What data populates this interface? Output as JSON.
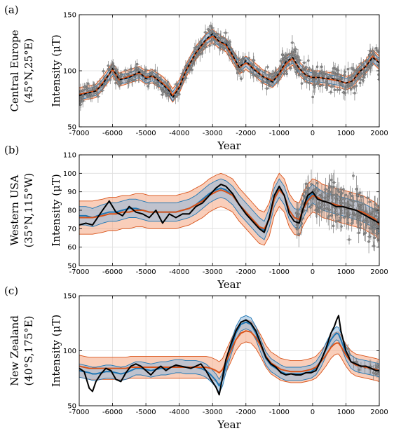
{
  "chart_data": [
    {
      "type": "line",
      "panel_tag": "(a)",
      "row_label": [
        "Central Europe",
        "(45°N,25°E)"
      ],
      "xlabel": "Year",
      "ylabel": "Intensity (μT)",
      "xlim": [
        -7000,
        2000
      ],
      "ylim": [
        50,
        150
      ],
      "xticks": [
        "-7000",
        "-6000",
        "-5000",
        "-4000",
        "-3000",
        "-2000",
        "-1000",
        "0",
        "1000",
        "2000"
      ],
      "yticks": [
        "50",
        "100",
        "150"
      ],
      "grid": true,
      "colors": {
        "black": "#000000",
        "blue": "#1f77b4",
        "orange": "#d95319",
        "data": "#707070",
        "band_orange": "#f4a582",
        "band_blue": "#a6c8e6"
      },
      "series": [
        {
          "style": "black-dashed",
          "x": [
            -7000,
            -6500,
            -6300,
            -6000,
            -5800,
            -5500,
            -5200,
            -5000,
            -4800,
            -4500,
            -4300,
            -4200,
            -4000,
            -3800,
            -3500,
            -3200,
            -3000,
            -2800,
            -2600,
            -2400,
            -2200,
            -2000,
            -1800,
            -1500,
            -1200,
            -1000,
            -800,
            -600,
            -400,
            -200,
            0,
            200,
            400,
            600,
            800,
            1000,
            1200,
            1400,
            1600,
            1800,
            2000
          ],
          "y": [
            78,
            82,
            88,
            102,
            92,
            94,
            99,
            93,
            96,
            88,
            82,
            76,
            85,
            100,
            116,
            128,
            133,
            126,
            124,
            114,
            103,
            109,
            102,
            95,
            90,
            98,
            108,
            112,
            102,
            96,
            94,
            94,
            93,
            93,
            91,
            89,
            91,
            99,
            104,
            112,
            107
          ]
        },
        {
          "style": "blue",
          "x": [
            -7000,
            -6500,
            -6300,
            -6000,
            -5800,
            -5500,
            -5200,
            -5000,
            -4800,
            -4500,
            -4300,
            -4200,
            -4000,
            -3800,
            -3500,
            -3200,
            -3000,
            -2800,
            -2600,
            -2400,
            -2200,
            -2000,
            -1800,
            -1500,
            -1200,
            -1000,
            -800,
            -600,
            -400,
            -200,
            0,
            200,
            400,
            600,
            800,
            1000,
            1200,
            1400,
            1600,
            1800,
            2000
          ],
          "y": [
            78,
            82,
            88,
            101,
            92,
            94,
            98,
            93,
            95,
            88,
            82,
            77,
            86,
            100,
            116,
            128,
            132,
            126,
            124,
            114,
            103,
            108,
            102,
            95,
            90,
            97,
            107,
            111,
            102,
            96,
            94,
            94,
            93,
            92,
            91,
            89,
            91,
            99,
            104,
            112,
            107
          ]
        },
        {
          "style": "orange",
          "x": [
            -7000,
            -6500,
            -6300,
            -6000,
            -5800,
            -5500,
            -5200,
            -5000,
            -4800,
            -4500,
            -4300,
            -4200,
            -4000,
            -3800,
            -3500,
            -3200,
            -3000,
            -2800,
            -2600,
            -2400,
            -2200,
            -2000,
            -1800,
            -1500,
            -1200,
            -1000,
            -800,
            -600,
            -400,
            -200,
            0,
            200,
            400,
            600,
            800,
            1000,
            1200,
            1400,
            1600,
            1800,
            2000
          ],
          "y": [
            79,
            82,
            89,
            101,
            92,
            95,
            98,
            94,
            95,
            89,
            83,
            78,
            86,
            100,
            116,
            127,
            131,
            126,
            123,
            113,
            103,
            107,
            103,
            95,
            91,
            97,
            106,
            111,
            102,
            96,
            94,
            94,
            93,
            92,
            91,
            89,
            91,
            99,
            104,
            113,
            107
          ]
        }
      ],
      "bands": {
        "blue_half_width": 4,
        "orange_half_width": 6
      },
      "observations": {
        "color": "#707070",
        "n_points": 600,
        "x_range": [
          -7000,
          2000
        ]
      }
    },
    {
      "type": "line",
      "panel_tag": "(b)",
      "row_label": [
        "Western USA",
        "(35°N,115°W)"
      ],
      "xlabel": "Year",
      "ylabel": "Intensity (μT)",
      "xlim": [
        -7000,
        2000
      ],
      "ylim": [
        50,
        110
      ],
      "xticks": [
        "-7000",
        "-6000",
        "-5000",
        "-4000",
        "-3000",
        "-2000",
        "-1000",
        "0",
        "1000",
        "2000"
      ],
      "yticks": [
        "50",
        "60",
        "70",
        "80",
        "90",
        "100",
        "110"
      ],
      "grid": true,
      "series": [
        {
          "style": "black",
          "x": [
            -7000,
            -6800,
            -6600,
            -6300,
            -6100,
            -5900,
            -5700,
            -5500,
            -5300,
            -5100,
            -4900,
            -4700,
            -4500,
            -4300,
            -4100,
            -3900,
            -3700,
            -3500,
            -3300,
            -3100,
            -2900,
            -2750,
            -2600,
            -2400,
            -2200,
            -2000,
            -1800,
            -1600,
            -1450,
            -1300,
            -1150,
            -1000,
            -850,
            -700,
            -550,
            -400,
            -300,
            -150,
            0,
            150,
            300,
            500,
            700,
            900,
            1100,
            1300,
            1500,
            1700,
            1900,
            2000
          ],
          "y": [
            72,
            73,
            72,
            80,
            85,
            79,
            77,
            82,
            79,
            78,
            76,
            80,
            73,
            78,
            76,
            78,
            78,
            82,
            84,
            88,
            92,
            94,
            93,
            89,
            83,
            78,
            74,
            70,
            68,
            76,
            88,
            93,
            88,
            78,
            74,
            73,
            80,
            88,
            90,
            86,
            85,
            84,
            82,
            82,
            81,
            80,
            78,
            76,
            74,
            73
          ]
        },
        {
          "style": "blue",
          "x": [
            -7000,
            -6800,
            -6600,
            -6300,
            -6100,
            -5900,
            -5700,
            -5500,
            -5300,
            -5100,
            -4900,
            -4700,
            -4500,
            -4300,
            -4100,
            -3900,
            -3700,
            -3500,
            -3300,
            -3100,
            -2900,
            -2750,
            -2600,
            -2400,
            -2200,
            -2000,
            -1800,
            -1600,
            -1450,
            -1300,
            -1150,
            -1000,
            -850,
            -700,
            -550,
            -400,
            -300,
            -150,
            0,
            150,
            300,
            500,
            700,
            900,
            1100,
            1300,
            1500,
            1700,
            1900,
            2000
          ],
          "y": [
            77,
            77,
            76,
            78,
            79,
            79,
            80,
            81,
            81,
            80,
            79,
            79,
            79,
            79,
            79,
            80,
            81,
            83,
            86,
            89,
            91,
            92,
            91,
            88,
            83,
            79,
            75,
            71,
            69,
            76,
            87,
            92,
            88,
            80,
            76,
            75,
            80,
            86,
            89,
            87,
            85,
            84,
            83,
            82,
            81,
            80,
            79,
            77,
            75,
            73
          ]
        },
        {
          "style": "orange",
          "x": [
            -7000,
            -6800,
            -6600,
            -6300,
            -6100,
            -5900,
            -5700,
            -5500,
            -5300,
            -5100,
            -4900,
            -4700,
            -4500,
            -4300,
            -4100,
            -3900,
            -3700,
            -3500,
            -3300,
            -3100,
            -2900,
            -2750,
            -2600,
            -2400,
            -2200,
            -2000,
            -1800,
            -1600,
            -1450,
            -1300,
            -1150,
            -1000,
            -850,
            -700,
            -550,
            -400,
            -300,
            -150,
            0,
            150,
            300,
            500,
            700,
            900,
            1100,
            1300,
            1500,
            1700,
            1900,
            2000
          ],
          "y": [
            76,
            76,
            76,
            77,
            78,
            78,
            79,
            79,
            80,
            80,
            79,
            79,
            79,
            79,
            79,
            80,
            81,
            83,
            85,
            88,
            90,
            91,
            90,
            88,
            83,
            79,
            75,
            71,
            70,
            75,
            86,
            91,
            88,
            80,
            76,
            75,
            80,
            85,
            88,
            87,
            85,
            84,
            83,
            82,
            81,
            80,
            79,
            77,
            75,
            72
          ]
        }
      ],
      "bands": {
        "blue_half_width": 5,
        "orange_half_width": 9
      },
      "observations": {
        "color": "#707070",
        "n_points": 230,
        "x_range": [
          -500,
          2000
        ]
      }
    },
    {
      "type": "line",
      "panel_tag": "(c)",
      "row_label": [
        "New Zealand",
        "(40°S,175°E)"
      ],
      "xlabel": "Year",
      "ylabel": "Intensity (μT)",
      "xlim": [
        -7000,
        2000
      ],
      "ylim": [
        50,
        150
      ],
      "xticks": [
        "-7000",
        "-6000",
        "-5000",
        "-4000",
        "-3000",
        "-2000",
        "-1000",
        "0",
        "1000",
        "2000"
      ],
      "yticks": [
        "50",
        "100",
        "150"
      ],
      "grid": true,
      "series": [
        {
          "style": "black",
          "x": [
            -7000,
            -6850,
            -6700,
            -6600,
            -6500,
            -6350,
            -6200,
            -6050,
            -5900,
            -5750,
            -5600,
            -5450,
            -5300,
            -5150,
            -5000,
            -4850,
            -4700,
            -4550,
            -4400,
            -4250,
            -4100,
            -3950,
            -3800,
            -3650,
            -3500,
            -3350,
            -3200,
            -3050,
            -2900,
            -2800,
            -2700,
            -2600,
            -2450,
            -2300,
            -2150,
            -2000,
            -1850,
            -1700,
            -1550,
            -1400,
            -1250,
            -1100,
            -950,
            -800,
            -650,
            -500,
            -350,
            -200,
            -50,
            100,
            250,
            400,
            550,
            650,
            720,
            780,
            850,
            1000,
            1150,
            1300,
            1450,
            1600,
            1750,
            1900,
            2000
          ],
          "y": [
            84,
            81,
            66,
            63,
            72,
            79,
            84,
            82,
            74,
            72,
            80,
            86,
            88,
            86,
            82,
            78,
            83,
            86,
            82,
            85,
            87,
            86,
            85,
            84,
            86,
            88,
            82,
            74,
            67,
            60,
            76,
            92,
            106,
            118,
            126,
            128,
            125,
            118,
            106,
            94,
            88,
            85,
            80,
            78,
            79,
            78,
            78,
            80,
            80,
            82,
            91,
            102,
            116,
            122,
            128,
            132,
            118,
            100,
            90,
            88,
            86,
            86,
            84,
            82,
            82
          ]
        },
        {
          "style": "blue",
          "x": [
            -7000,
            -6850,
            -6700,
            -6600,
            -6500,
            -6350,
            -6200,
            -6050,
            -5900,
            -5750,
            -5600,
            -5450,
            -5300,
            -5150,
            -5000,
            -4850,
            -4700,
            -4550,
            -4400,
            -4250,
            -4100,
            -3950,
            -3800,
            -3650,
            -3500,
            -3350,
            -3200,
            -3050,
            -2900,
            -2800,
            -2700,
            -2600,
            -2450,
            -2300,
            -2150,
            -2000,
            -1850,
            -1700,
            -1550,
            -1400,
            -1250,
            -1100,
            -950,
            -800,
            -650,
            -500,
            -350,
            -200,
            -50,
            100,
            250,
            400,
            550,
            650,
            720,
            780,
            850,
            1000,
            1150,
            1300,
            1450,
            1600,
            1750,
            1900,
            2000
          ],
          "y": [
            82,
            81,
            80,
            79,
            79,
            80,
            81,
            81,
            80,
            79,
            80,
            82,
            84,
            84,
            83,
            82,
            83,
            84,
            84,
            85,
            86,
            86,
            85,
            85,
            85,
            84,
            82,
            78,
            73,
            68,
            74,
            86,
            102,
            116,
            124,
            126,
            124,
            116,
            104,
            93,
            87,
            84,
            81,
            79,
            79,
            79,
            79,
            80,
            81,
            84,
            91,
            101,
            110,
            114,
            116,
            115,
            110,
            98,
            90,
            87,
            86,
            85,
            84,
            83,
            82
          ]
        },
        {
          "style": "orange",
          "x": [
            -7000,
            -6850,
            -6700,
            -6600,
            -6500,
            -6350,
            -6200,
            -6050,
            -5900,
            -5750,
            -5600,
            -5450,
            -5300,
            -5150,
            -5000,
            -4850,
            -4700,
            -4550,
            -4400,
            -4250,
            -4100,
            -3950,
            -3800,
            -3650,
            -3500,
            -3350,
            -3200,
            -3050,
            -2900,
            -2800,
            -2700,
            -2600,
            -2450,
            -2300,
            -2150,
            -2000,
            -1850,
            -1700,
            -1550,
            -1400,
            -1250,
            -1100,
            -950,
            -800,
            -650,
            -500,
            -350,
            -200,
            -50,
            100,
            250,
            400,
            550,
            650,
            720,
            780,
            850,
            1000,
            1150,
            1300,
            1450,
            1600,
            1750,
            1900,
            2000
          ],
          "y": [
            86,
            85,
            84,
            84,
            84,
            84,
            84,
            84,
            84,
            84,
            84,
            85,
            85,
            85,
            85,
            85,
            85,
            85,
            85,
            85,
            85,
            85,
            85,
            85,
            85,
            85,
            85,
            84,
            82,
            80,
            83,
            90,
            100,
            110,
            116,
            118,
            117,
            112,
            104,
            95,
            89,
            86,
            83,
            82,
            81,
            81,
            81,
            82,
            83,
            85,
            90,
            96,
            103,
            106,
            107,
            107,
            104,
            96,
            90,
            87,
            86,
            85,
            84,
            83,
            82
          ]
        }
      ],
      "bands": {
        "blue_half_width": 6,
        "orange_half_width": 10
      },
      "observations": {
        "color": "#707070",
        "n_points": 18,
        "x_range": [
          1000,
          2000
        ]
      }
    }
  ]
}
